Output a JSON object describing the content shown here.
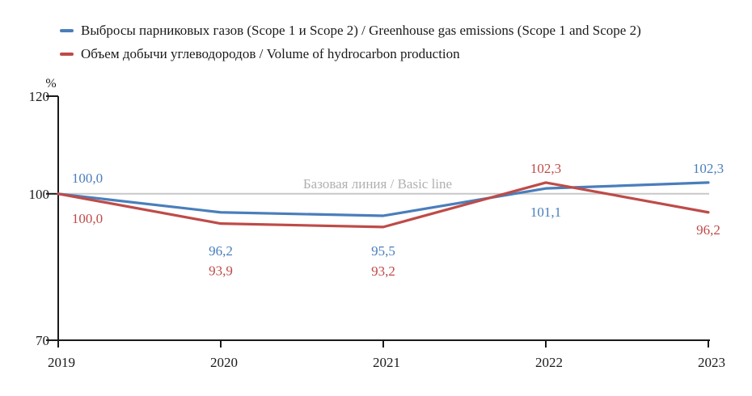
{
  "chart_data": {
    "type": "line",
    "unit_label": "%",
    "x_labels": [
      "2019",
      "2020",
      "2021",
      "2022",
      "2023"
    ],
    "ylim": [
      70,
      120
    ],
    "yticks": [
      120,
      100,
      70
    ],
    "ytick_labels": [
      "120",
      "100",
      "70"
    ],
    "grid": false,
    "legend_position": "top-left",
    "baseline": {
      "value": 100,
      "label": "Базовая линия / Basic line",
      "line_color": "#c8c8c8",
      "label_color": "#b0b0b0"
    },
    "axis_color": "#1a1a1a",
    "series": [
      {
        "name": "Выбросы парниковых газов (Scope 1 и Scope 2) / Greenhouse gas emissions (Scope 1 and Scope 2)",
        "color": "#4A7EBB",
        "values": [
          100.0,
          96.2,
          95.5,
          101.1,
          102.3
        ],
        "labels": [
          "100,0",
          "96,2",
          "95,5",
          "101,1",
          "102,3"
        ]
      },
      {
        "name": "Объем добычи углеводородов / Volume of hydrocarbon production",
        "color": "#BE4B48",
        "values": [
          100.0,
          93.9,
          93.2,
          102.3,
          96.2
        ],
        "labels": [
          "100,0",
          "93,9",
          "93,2",
          "102,3",
          "96,2"
        ]
      }
    ]
  }
}
